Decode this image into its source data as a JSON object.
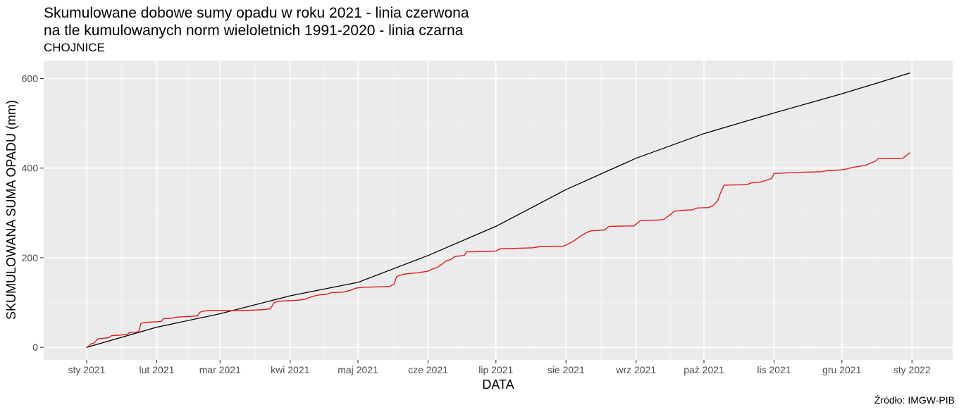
{
  "chart_data": {
    "type": "line",
    "title_line1": "Skumulowane dobowe sumy opadu w roku 2021 - linia czerwona",
    "title_line2": "na tle kumulowanych norm wieloletnich 1991-2020 - linia czarna",
    "subtitle": "CHOJNICE",
    "caption": "Źródło: IMGW-PIB",
    "xlabel": "DATA",
    "ylabel": "SKUMULOWANA SUMA OPADU (mm)",
    "xlim": [
      "2020-12-13",
      "2022-01-19"
    ],
    "ylim": [
      -28,
      640
    ],
    "x_ticks": [
      {
        "date": "2021-01-01",
        "label": "sty 2021"
      },
      {
        "date": "2021-02-01",
        "label": "lut 2021"
      },
      {
        "date": "2021-03-01",
        "label": "mar 2021"
      },
      {
        "date": "2021-04-01",
        "label": "kwi 2021"
      },
      {
        "date": "2021-05-01",
        "label": "maj 2021"
      },
      {
        "date": "2021-06-01",
        "label": "cze 2021"
      },
      {
        "date": "2021-07-01",
        "label": "lip 2021"
      },
      {
        "date": "2021-08-01",
        "label": "sie 2021"
      },
      {
        "date": "2021-09-01",
        "label": "wrz 2021"
      },
      {
        "date": "2021-10-01",
        "label": "paź 2021"
      },
      {
        "date": "2021-11-01",
        "label": "lis 2021"
      },
      {
        "date": "2021-12-01",
        "label": "gru 2021"
      },
      {
        "date": "2022-01-01",
        "label": "sty 2022"
      }
    ],
    "y_ticks": [
      0,
      200,
      400,
      600
    ],
    "grid": true,
    "series": [
      {
        "color": "#000000",
        "points": [
          [
            "2021-01-01",
            0
          ],
          [
            "2021-02-01",
            45
          ],
          [
            "2021-03-01",
            75
          ],
          [
            "2021-04-01",
            115
          ],
          [
            "2021-05-01",
            145
          ],
          [
            "2021-06-01",
            205
          ],
          [
            "2021-07-01",
            270
          ],
          [
            "2021-08-01",
            352
          ],
          [
            "2021-09-01",
            422
          ],
          [
            "2021-10-01",
            477
          ],
          [
            "2021-11-01",
            523
          ],
          [
            "2021-12-01",
            566
          ],
          [
            "2021-12-31",
            612
          ]
        ]
      },
      {
        "color": "#e31a1c",
        "points": [
          [
            "2021-01-01",
            0
          ],
          [
            "2021-01-02",
            3
          ],
          [
            "2021-01-03",
            8
          ],
          [
            "2021-01-04",
            9
          ],
          [
            "2021-01-06",
            19
          ],
          [
            "2021-01-08",
            20
          ],
          [
            "2021-01-10",
            21
          ],
          [
            "2021-01-11",
            22
          ],
          [
            "2021-01-12",
            26
          ],
          [
            "2021-01-15",
            27
          ],
          [
            "2021-01-17",
            28
          ],
          [
            "2021-01-19",
            29
          ],
          [
            "2021-01-20",
            33
          ],
          [
            "2021-01-23",
            34
          ],
          [
            "2021-01-24",
            35
          ],
          [
            "2021-01-25",
            53
          ],
          [
            "2021-01-26",
            55
          ],
          [
            "2021-01-28",
            56
          ],
          [
            "2021-01-31",
            57
          ],
          [
            "2021-02-01",
            57
          ],
          [
            "2021-02-03",
            58
          ],
          [
            "2021-02-04",
            64
          ],
          [
            "2021-02-08",
            65
          ],
          [
            "2021-02-09",
            67
          ],
          [
            "2021-02-12",
            68
          ],
          [
            "2021-02-15",
            69
          ],
          [
            "2021-02-19",
            70
          ],
          [
            "2021-02-20",
            78
          ],
          [
            "2021-02-21",
            80
          ],
          [
            "2021-02-22",
            81
          ],
          [
            "2021-02-24",
            82
          ],
          [
            "2021-03-10",
            82
          ],
          [
            "2021-03-15",
            83
          ],
          [
            "2021-03-20",
            84
          ],
          [
            "2021-03-23",
            86
          ],
          [
            "2021-03-24",
            92
          ],
          [
            "2021-03-25",
            100
          ],
          [
            "2021-03-27",
            103
          ],
          [
            "2021-03-31",
            104
          ],
          [
            "2021-04-04",
            105
          ],
          [
            "2021-04-06",
            106
          ],
          [
            "2021-04-08",
            108
          ],
          [
            "2021-04-10",
            112
          ],
          [
            "2021-04-12",
            115
          ],
          [
            "2021-04-14",
            117
          ],
          [
            "2021-04-17",
            118
          ],
          [
            "2021-04-19",
            122
          ],
          [
            "2021-04-24",
            123
          ],
          [
            "2021-04-26",
            125
          ],
          [
            "2021-04-28",
            128
          ],
          [
            "2021-04-30",
            132
          ],
          [
            "2021-05-03",
            134
          ],
          [
            "2021-05-10",
            135
          ],
          [
            "2021-05-15",
            136
          ],
          [
            "2021-05-17",
            141
          ],
          [
            "2021-05-18",
            157
          ],
          [
            "2021-05-19",
            160
          ],
          [
            "2021-05-21",
            163
          ],
          [
            "2021-05-24",
            165
          ],
          [
            "2021-05-27",
            166
          ],
          [
            "2021-06-01",
            170
          ],
          [
            "2021-06-03",
            175
          ],
          [
            "2021-06-05",
            178
          ],
          [
            "2021-06-07",
            185
          ],
          [
            "2021-06-09",
            193
          ],
          [
            "2021-06-11",
            196
          ],
          [
            "2021-06-13",
            203
          ],
          [
            "2021-06-17",
            205
          ],
          [
            "2021-06-18",
            213
          ],
          [
            "2021-06-28",
            214
          ],
          [
            "2021-07-01",
            215
          ],
          [
            "2021-07-03",
            220
          ],
          [
            "2021-07-10",
            221
          ],
          [
            "2021-07-17",
            222
          ],
          [
            "2021-07-21",
            225
          ],
          [
            "2021-07-31",
            226
          ],
          [
            "2021-08-02",
            231
          ],
          [
            "2021-08-04",
            236
          ],
          [
            "2021-08-06",
            243
          ],
          [
            "2021-08-08",
            250
          ],
          [
            "2021-08-10",
            256
          ],
          [
            "2021-08-12",
            260
          ],
          [
            "2021-08-18",
            262
          ],
          [
            "2021-08-20",
            270
          ],
          [
            "2021-08-31",
            271
          ],
          [
            "2021-09-03",
            283
          ],
          [
            "2021-09-10",
            284
          ],
          [
            "2021-09-13",
            285
          ],
          [
            "2021-09-15",
            292
          ],
          [
            "2021-09-18",
            304
          ],
          [
            "2021-09-22",
            306
          ],
          [
            "2021-09-26",
            307
          ],
          [
            "2021-09-28",
            311
          ],
          [
            "2021-10-03",
            312
          ],
          [
            "2021-10-05",
            316
          ],
          [
            "2021-10-07",
            327
          ],
          [
            "2021-10-08",
            340
          ],
          [
            "2021-10-09",
            353
          ],
          [
            "2021-10-10",
            362
          ],
          [
            "2021-10-20",
            363
          ],
          [
            "2021-10-22",
            367
          ],
          [
            "2021-10-26",
            369
          ],
          [
            "2021-10-28",
            372
          ],
          [
            "2021-10-31",
            377
          ],
          [
            "2021-11-01",
            388
          ],
          [
            "2021-11-05",
            389
          ],
          [
            "2021-11-10",
            390
          ],
          [
            "2021-11-15",
            391
          ],
          [
            "2021-11-22",
            392
          ],
          [
            "2021-11-24",
            394
          ],
          [
            "2021-12-01",
            396
          ],
          [
            "2021-12-03",
            398
          ],
          [
            "2021-12-06",
            402
          ],
          [
            "2021-12-09",
            404
          ],
          [
            "2021-12-12",
            407
          ],
          [
            "2021-12-14",
            412
          ],
          [
            "2021-12-16",
            416
          ],
          [
            "2021-12-17",
            421
          ],
          [
            "2021-12-28",
            422
          ],
          [
            "2021-12-30",
            430
          ],
          [
            "2021-12-31",
            434
          ]
        ]
      }
    ]
  }
}
